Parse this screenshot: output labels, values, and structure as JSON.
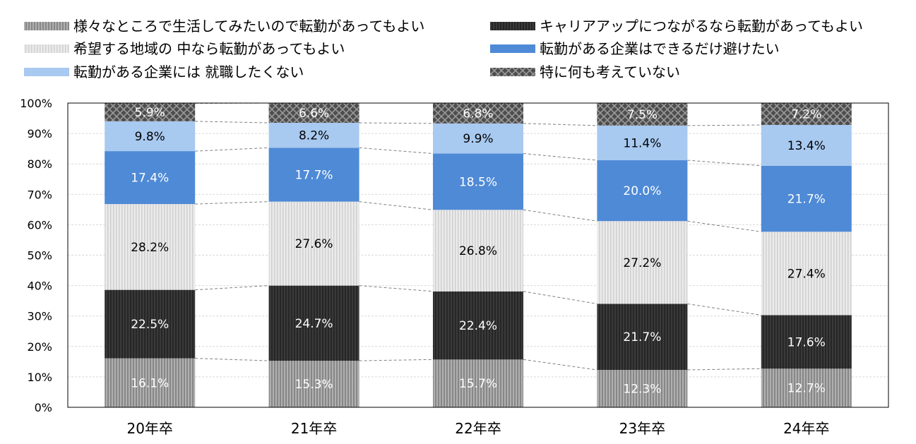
{
  "chart_data": {
    "type": "bar",
    "stacked": true,
    "categories": [
      "20年卒",
      "21年卒",
      "22年卒",
      "23年卒",
      "24年卒"
    ],
    "series": [
      {
        "name": "様々なところで生活してみたいので転勤があってもよい",
        "values": [
          16.1,
          15.3,
          15.7,
          12.3,
          12.7
        ],
        "color": "#9c9c9c",
        "pattern": "v-stripes-gray",
        "label_color": "#ffffff"
      },
      {
        "name": "キャリアアップにつながるなら転勤があってもよい",
        "values": [
          22.5,
          24.7,
          22.4,
          21.7,
          17.6
        ],
        "color": "#333333",
        "pattern": "v-stripes-dark",
        "label_color": "#ffffff"
      },
      {
        "name": "希望する地域の 中なら転勤があってもよい",
        "values": [
          28.2,
          27.6,
          26.8,
          27.2,
          27.4
        ],
        "color": "#e2e2e2",
        "pattern": "v-stripes-light",
        "label_color": "#000000"
      },
      {
        "name": "転勤がある企業はできるだけ避けたい",
        "values": [
          17.4,
          17.7,
          18.5,
          20.0,
          21.7
        ],
        "color": "#4f8ad6",
        "pattern": "solid",
        "label_color": "#ffffff"
      },
      {
        "name": "転勤がある企業には 就職したくない",
        "values": [
          9.8,
          8.2,
          9.9,
          11.4,
          13.4
        ],
        "color": "#a8c9f0",
        "pattern": "solid",
        "label_color": "#000000"
      },
      {
        "name": "特に何も考えていない",
        "values": [
          5.9,
          6.6,
          6.8,
          7.5,
          7.2
        ],
        "color": "#4d4d4d",
        "pattern": "crosshatch",
        "label_color": "#ffffff"
      }
    ],
    "value_labels": [
      [
        "16.1%",
        "15.3%",
        "15.7%",
        "12.3%",
        "12.7%"
      ],
      [
        "22.5%",
        "24.7%",
        "22.4%",
        "21.7%",
        "17.6%"
      ],
      [
        "28.2%",
        "27.6%",
        "26.8%",
        "27.2%",
        "27.4%"
      ],
      [
        "17.4%",
        "17.7%",
        "18.5%",
        "20.0%",
        "21.7%"
      ],
      [
        "9.8%",
        "8.2%",
        "9.9%",
        "11.4%",
        "13.4%"
      ],
      [
        "5.9%",
        "6.6%",
        "6.8%",
        "7.5%",
        "7.2%"
      ]
    ],
    "y_ticks": [
      "0%",
      "10%",
      "20%",
      "30%",
      "40%",
      "50%",
      "60%",
      "70%",
      "80%",
      "90%",
      "100%"
    ],
    "ylim": [
      0,
      100
    ],
    "grid": true,
    "legend_position": "top",
    "connector_lines": "dashed"
  }
}
